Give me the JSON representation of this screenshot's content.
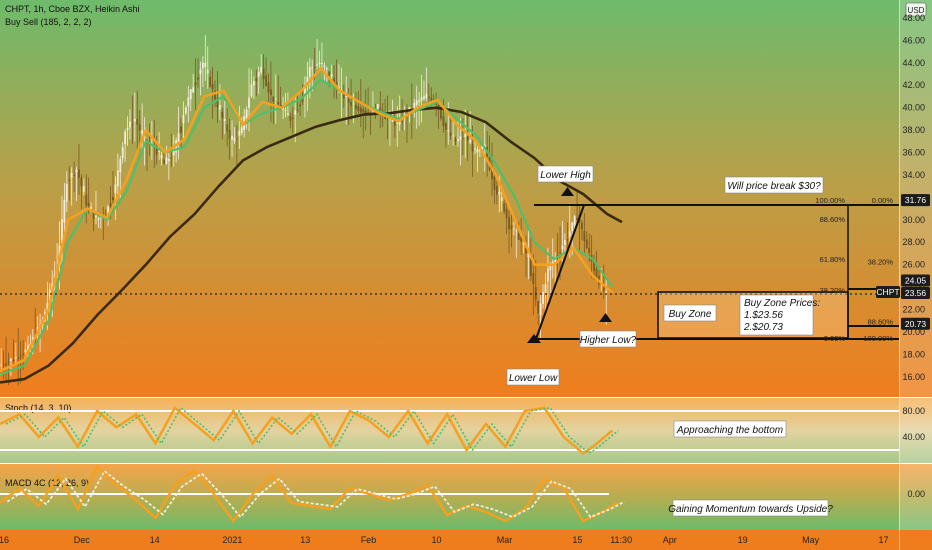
{
  "header": {
    "symbol": "CHPT, 1h, Cboe BZX, Heikin Ashi",
    "indicator": "Buy Sell (185, 2, 2, 2)",
    "currency": "USD"
  },
  "stoch_label": "Stoch (14, 3, 10)",
  "macd_label": "MACD 4C (12, 26, 9)",
  "colors": {
    "gradient_top": "#6dbb6b",
    "gradient_mid": "#b0a24a",
    "gradient_bottom": "#f07d1c",
    "ema_fast": "#f5a020",
    "ema_mid": "#4fbf6a",
    "sma_slow": "#3a2a10",
    "candle_up": "#f3eedc",
    "candle_down": "#7a5a20"
  },
  "chart_data": {
    "type": "line",
    "y_axis": {
      "ticks": [
        "48.00",
        "46.00",
        "44.00",
        "42.00",
        "40.00",
        "38.00",
        "36.00",
        "34.00",
        "32.00",
        "30.00",
        "28.00",
        "26.00",
        "24.00",
        "22.00",
        "20.00",
        "18.00",
        "16.00"
      ],
      "tick_values": [
        48,
        46,
        44,
        42,
        40,
        38,
        36,
        34,
        32,
        30,
        28,
        26,
        24,
        22,
        20,
        18,
        16
      ],
      "ylim": [
        14.2,
        49.6
      ]
    },
    "x_axis": {
      "ticks": [
        "16",
        "Dec",
        "14",
        "2021",
        "13",
        "Feb",
        "10",
        "Mar",
        "15",
        "11:30",
        "Apr",
        "19",
        "May",
        "17"
      ],
      "tick_index": [
        0,
        16,
        31,
        47,
        62,
        75,
        89,
        103,
        118,
        127,
        137,
        152,
        166,
        181
      ],
      "xlim": [
        0,
        185
      ]
    },
    "price_badges": [
      {
        "label": "31.76",
        "value": 31.76,
        "style": "dark"
      },
      {
        "label": "24.05",
        "value": 24.05,
        "style": "dark"
      },
      {
        "label": "CHPT",
        "value": 23.56,
        "style": "dark"
      },
      {
        "label": "23.56",
        "value": 23.56,
        "style": "dark"
      },
      {
        "label": "20.73",
        "value": 20.73,
        "style": "dark"
      }
    ],
    "price_series": {
      "name": "",
      "x": [
        0,
        3,
        6,
        9,
        12,
        14,
        16,
        18,
        20,
        22,
        24,
        26,
        28,
        30,
        32,
        34,
        36,
        38,
        40,
        42,
        44,
        46,
        48,
        50,
        52,
        54,
        56,
        58,
        60,
        62,
        64,
        66,
        68,
        70,
        72,
        74,
        76,
        78,
        80,
        82,
        84,
        86,
        88,
        90,
        92,
        94,
        96,
        98,
        100,
        102,
        104,
        105,
        107,
        109,
        111,
        113,
        115,
        117,
        119,
        121,
        123,
        125
      ],
      "y": [
        17.0,
        17.6,
        18.5,
        21.0,
        26.0,
        33.5,
        34.5,
        31.5,
        30.0,
        30.5,
        33.0,
        38.0,
        39.0,
        37.0,
        36.5,
        35.0,
        36.0,
        39.5,
        42.0,
        44.0,
        41.5,
        39.0,
        37.0,
        38.0,
        42.0,
        43.5,
        41.0,
        40.0,
        39.0,
        40.5,
        43.5,
        44.0,
        43.0,
        41.5,
        40.5,
        40.0,
        39.5,
        40.0,
        39.0,
        38.5,
        39.5,
        40.5,
        41.0,
        40.5,
        38.0,
        37.0,
        37.5,
        36.0,
        36.5,
        33.0,
        31.0,
        29.5,
        28.5,
        26.5,
        21.5,
        25.5,
        27.0,
        28.5,
        30.5,
        27.5,
        25.0,
        23.2
      ]
    },
    "ema_fast": {
      "x": [
        0,
        5,
        10,
        14,
        18,
        22,
        26,
        30,
        34,
        38,
        42,
        46,
        50,
        54,
        58,
        62,
        66,
        70,
        74,
        78,
        82,
        86,
        90,
        94,
        98,
        102,
        106,
        110,
        114,
        118,
        122,
        126
      ],
      "y": [
        16.5,
        17.5,
        22.0,
        30.0,
        31.0,
        30.2,
        33.5,
        38.0,
        36.0,
        37.2,
        41.0,
        41.5,
        38.5,
        40.5,
        40.0,
        41.5,
        43.5,
        41.5,
        40.5,
        39.5,
        38.8,
        40.0,
        40.7,
        38.5,
        37.0,
        34.0,
        30.0,
        26.0,
        26.0,
        27.5,
        25.0,
        23.5
      ]
    },
    "ema_mid": {
      "x": [
        0,
        5,
        10,
        14,
        18,
        22,
        26,
        30,
        34,
        38,
        42,
        46,
        50,
        54,
        58,
        62,
        66,
        70,
        74,
        78,
        82,
        86,
        90,
        94,
        98,
        102,
        106,
        110,
        114,
        118,
        122,
        126
      ],
      "y": [
        16.2,
        17.0,
        21.0,
        28.0,
        31.0,
        30.0,
        32.5,
        37.0,
        36.0,
        36.5,
        40.0,
        41.0,
        38.5,
        39.5,
        40.0,
        40.8,
        42.5,
        41.5,
        40.5,
        39.7,
        39.0,
        39.8,
        40.5,
        39.0,
        37.5,
        35.0,
        32.0,
        28.0,
        26.5,
        27.5,
        26.5,
        24.0
      ]
    },
    "sma_slow": {
      "x": [
        0,
        5,
        10,
        15,
        20,
        25,
        30,
        35,
        40,
        45,
        50,
        55,
        60,
        65,
        70,
        75,
        80,
        85,
        90,
        95,
        100,
        105,
        110,
        115,
        120,
        125,
        128
      ],
      "y": [
        15.5,
        15.8,
        17.0,
        19.0,
        21.5,
        23.7,
        26.0,
        28.5,
        30.5,
        33.0,
        35.3,
        36.5,
        37.4,
        38.3,
        38.9,
        39.4,
        39.5,
        39.8,
        40.0,
        39.6,
        38.7,
        37.0,
        35.5,
        33.5,
        32.3,
        30.5,
        29.8
      ]
    },
    "annotations": [
      {
        "text": "Lower High",
        "x": 114,
        "y": 35.2
      },
      {
        "text": "Will price break $30?",
        "x": 162,
        "y": 33.8
      },
      {
        "text": "Buy Zone",
        "x": 145,
        "y": 22.1
      },
      {
        "text": "Buy Zone Prices:",
        "x": 157,
        "y": 23.1
      },
      {
        "text": "1.$23.56",
        "x": 157,
        "y": 22.0
      },
      {
        "text": "2.$20.73",
        "x": 157,
        "y": 20.9
      },
      {
        "text": "Higher Low?",
        "x": 120,
        "y": 19.9
      },
      {
        "text": "Lower Low",
        "x": 107,
        "y": 16.0
      }
    ],
    "fib_levels": [
      {
        "label": "100.00%",
        "value": 31.76,
        "side": "left"
      },
      {
        "label": "0.00%",
        "value": 31.76,
        "side": "right"
      },
      {
        "label": "88.60%",
        "value": 30.05,
        "side": "left"
      },
      {
        "label": "61.80%",
        "value": 26.52,
        "side": "left"
      },
      {
        "label": "38.20%",
        "value": 26.3,
        "side": "right"
      },
      {
        "label": "38.20%",
        "value": 23.75,
        "side": "left"
      },
      {
        "label": "88.60%",
        "value": 20.95,
        "side": "right"
      },
      {
        "label": "0.00%",
        "value": 19.45,
        "side": "left"
      },
      {
        "label": "100.00%",
        "value": 19.45,
        "side": "right"
      }
    ],
    "stoch": {
      "ticks": [
        "80.00",
        "40.00"
      ],
      "tick_values": [
        80,
        40
      ],
      "ylim": [
        0,
        100
      ],
      "upper_band": 80,
      "lower_band": 20,
      "annotation": "Approaching the bottom",
      "k": {
        "x": [
          0,
          4,
          8,
          12,
          16,
          20,
          24,
          28,
          32,
          36,
          40,
          44,
          48,
          52,
          56,
          60,
          64,
          68,
          72,
          76,
          80,
          84,
          88,
          92,
          96,
          100,
          104,
          108,
          112,
          116,
          120,
          122,
          126
        ],
        "y": [
          60,
          75,
          40,
          70,
          25,
          80,
          55,
          75,
          30,
          85,
          60,
          35,
          80,
          30,
          70,
          45,
          75,
          25,
          80,
          65,
          40,
          80,
          30,
          75,
          20,
          60,
          25,
          80,
          85,
          40,
          15,
          25,
          50
        ]
      }
    },
    "macd": {
      "ticks": [
        "0.00"
      ],
      "tick_values": [
        0
      ],
      "ylim": [
        -1.2,
        1.0
      ],
      "zero_line": 0,
      "annotation": "Gaining Momentum towards Upside?",
      "line": {
        "x": [
          0,
          4,
          8,
          12,
          16,
          20,
          24,
          28,
          32,
          36,
          40,
          44,
          48,
          52,
          56,
          60,
          64,
          68,
          72,
          76,
          80,
          84,
          88,
          92,
          96,
          100,
          104,
          108,
          112,
          116,
          120,
          124,
          127
        ],
        "y": [
          -0.3,
          0.2,
          -0.4,
          0.6,
          -0.5,
          0.9,
          0.3,
          -0.2,
          -0.8,
          0.3,
          0.8,
          0.0,
          -0.9,
          0.0,
          0.6,
          -0.3,
          -0.4,
          -0.5,
          0.2,
          0.0,
          -0.2,
          0.0,
          0.3,
          -0.7,
          -0.4,
          -0.6,
          -0.9,
          -0.5,
          0.5,
          0.2,
          -0.9,
          -0.6,
          -0.3
        ]
      }
    }
  }
}
